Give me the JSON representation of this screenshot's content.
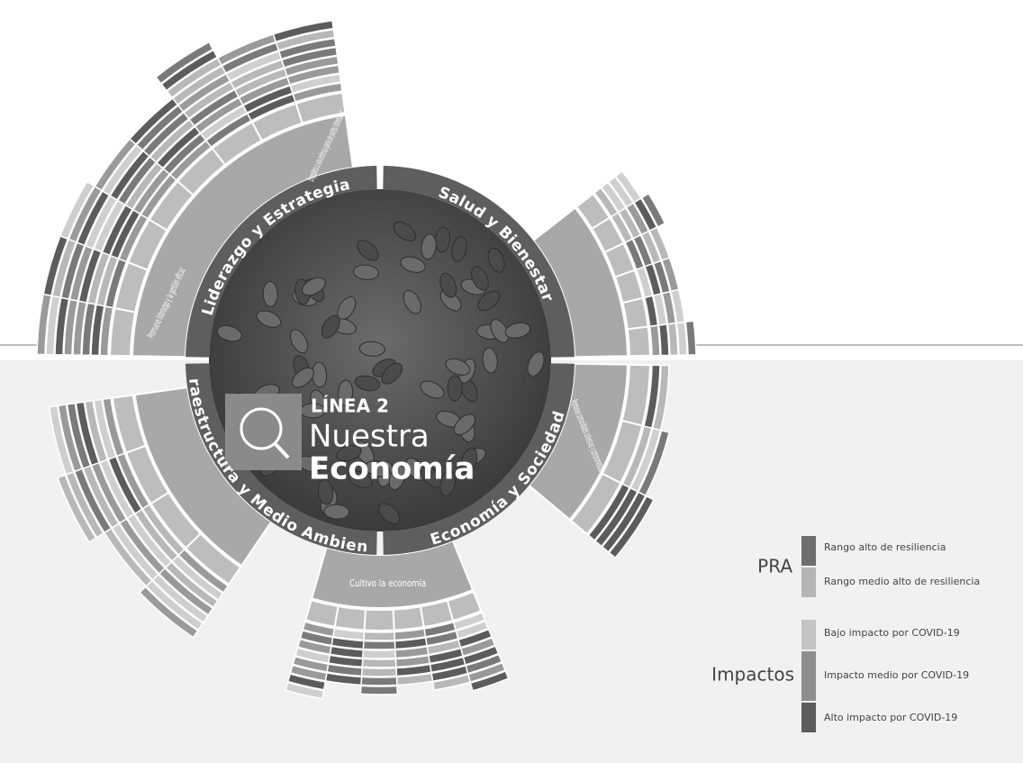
{
  "center": {
    "line": "LÍNEA 2",
    "title_1": "Nuestra",
    "title_2": "Economía"
  },
  "quadrants": [
    {
      "label": "Liderazgo y Estrategia",
      "inner": [
        "Promueve liderazgo y la gestión eficaz",
        "Empodera a una extensa gama de partes interesadas"
      ]
    },
    {
      "label": "Salud y Bienestar",
      "inner": []
    },
    {
      "label": "Economía y Sociedad",
      "inner": [
        "Promueve comunidades cohesivas y comprometidas",
        "Cultivo la economía"
      ]
    },
    {
      "label": "Infraestructura y Medio Ambiente",
      "inner": []
    }
  ],
  "legend": {
    "pra": {
      "title": "PRA",
      "items": [
        "Rango alto de resiliencia",
        "Rango medio alto de resiliencia"
      ]
    },
    "impacts": {
      "title": "Impactos",
      "items": [
        "Bajo impacto por COVID-19",
        "Impacto medio por COVID-19",
        "Alto impacto por COVID-19"
      ]
    }
  }
}
